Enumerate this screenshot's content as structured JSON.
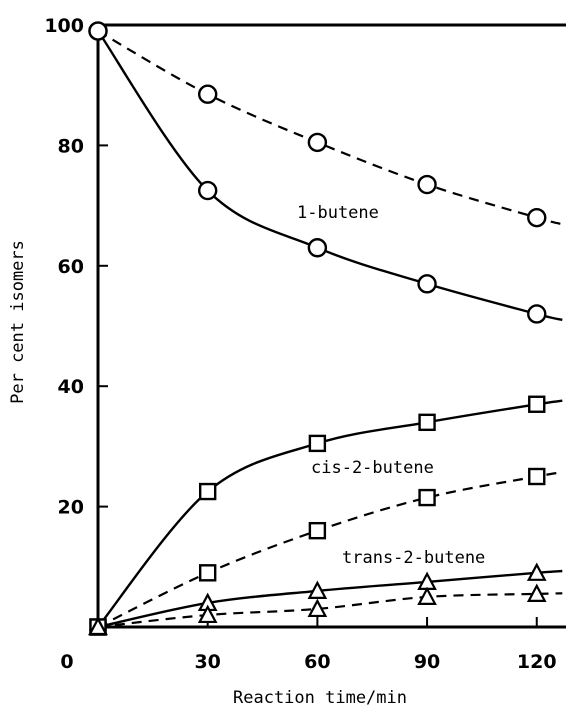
{
  "chart_data": {
    "type": "line",
    "xlabel": "Reaction time/min",
    "ylabel": "Per cent isomers",
    "xlim": [
      0,
      128
    ],
    "ylim": [
      0,
      100
    ],
    "x_ticks": [
      30,
      60,
      90,
      120
    ],
    "y_ticks": [
      20,
      40,
      60,
      80,
      100
    ],
    "origin_label": "0",
    "grid": false,
    "series": [
      {
        "name": "1-butene",
        "marker": "circle",
        "line": "solid",
        "x": [
          0,
          30,
          60,
          90,
          120
        ],
        "y": [
          99,
          72.5,
          63,
          57,
          52
        ]
      },
      {
        "marker": "circle",
        "line": "dashed",
        "x": [
          0,
          30,
          60,
          90,
          120
        ],
        "y": [
          99,
          88.5,
          80.5,
          73.5,
          68
        ]
      },
      {
        "name": "cis-2-butene",
        "marker": "square",
        "line": "solid",
        "x": [
          0,
          30,
          60,
          90,
          120
        ],
        "y": [
          0,
          22.5,
          30.5,
          34,
          37
        ]
      },
      {
        "marker": "square",
        "line": "dashed",
        "x": [
          0,
          30,
          60,
          90,
          120
        ],
        "y": [
          0,
          9,
          16,
          21.5,
          25
        ]
      },
      {
        "name": "trans-2-butene",
        "marker": "triangle",
        "line": "solid",
        "x": [
          0,
          30,
          60,
          90,
          120
        ],
        "y": [
          0,
          4,
          6,
          7.5,
          9
        ]
      },
      {
        "marker": "triangle",
        "line": "dashed",
        "x": [
          0,
          30,
          60,
          90,
          120
        ],
        "y": [
          0,
          2,
          3,
          5,
          5.5
        ]
      }
    ]
  }
}
